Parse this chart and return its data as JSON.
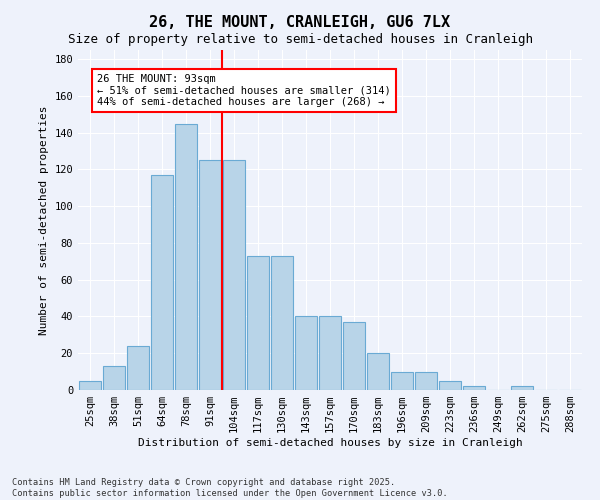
{
  "title1": "26, THE MOUNT, CRANLEIGH, GU6 7LX",
  "title2": "Size of property relative to semi-detached houses in Cranleigh",
  "xlabel": "Distribution of semi-detached houses by size in Cranleigh",
  "ylabel": "Number of semi-detached properties",
  "categories": [
    "25sqm",
    "38sqm",
    "51sqm",
    "64sqm",
    "78sqm",
    "91sqm",
    "104sqm",
    "117sqm",
    "130sqm",
    "143sqm",
    "157sqm",
    "170sqm",
    "183sqm",
    "196sqm",
    "209sqm",
    "223sqm",
    "236sqm",
    "249sqm",
    "262sqm",
    "275sqm",
    "288sqm"
  ],
  "values": [
    5,
    13,
    24,
    117,
    145,
    125,
    125,
    73,
    73,
    40,
    40,
    37,
    20,
    10,
    10,
    5,
    2,
    0,
    2,
    0,
    0
  ],
  "bar_color": "#b8d4e8",
  "bar_edge_color": "#6aaad4",
  "vline_index": 5,
  "vline_color": "red",
  "annotation_title": "26 THE MOUNT: 93sqm",
  "annotation_line1": "← 51% of semi-detached houses are smaller (314)",
  "annotation_line2": "44% of semi-detached houses are larger (268) →",
  "annotation_box_color": "red",
  "ylim": [
    0,
    185
  ],
  "yticks": [
    0,
    20,
    40,
    60,
    80,
    100,
    120,
    140,
    160,
    180
  ],
  "footnote1": "Contains HM Land Registry data © Crown copyright and database right 2025.",
  "footnote2": "Contains public sector information licensed under the Open Government Licence v3.0.",
  "bg_color": "#eef2fb",
  "title1_fontsize": 11,
  "title2_fontsize": 9,
  "xlabel_fontsize": 8,
  "ylabel_fontsize": 8,
  "tick_fontsize": 7.5,
  "annot_fontsize": 7.5,
  "footnote_fontsize": 6.2
}
